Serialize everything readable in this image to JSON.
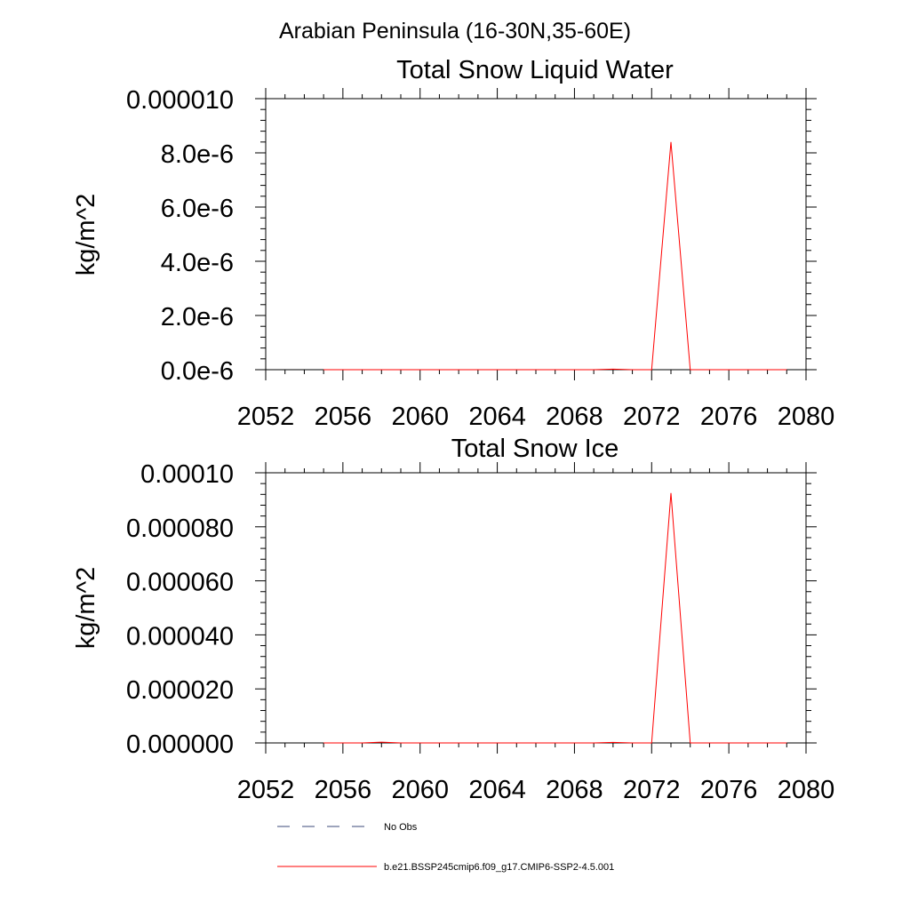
{
  "figure": {
    "suptitle": "Arabian Peninsula (16-30N,35-60E)",
    "legend": [
      {
        "label": "No Obs",
        "color": "#3b4a7a",
        "dash": "dashed"
      },
      {
        "label": "b.e21.BSSP245cmip6.f09_g17.CMIP6-SSP2-4.5.001",
        "color": "#ff0000",
        "dash": "solid"
      }
    ]
  },
  "chart_data": [
    {
      "type": "line",
      "title": "Total Snow Liquid Water",
      "xlabel": "",
      "ylabel": "kg/m^2",
      "xlim": [
        2052,
        2080
      ],
      "ylim": [
        0,
        1e-05
      ],
      "xticks": [
        2052,
        2056,
        2060,
        2064,
        2068,
        2072,
        2076,
        2080
      ],
      "xtick_labels": [
        "2052",
        "2056",
        "2060",
        "2064",
        "2068",
        "2072",
        "2076",
        "2080"
      ],
      "yticks": [
        0,
        2e-06,
        4e-06,
        6e-06,
        8e-06,
        1e-05
      ],
      "ytick_labels": [
        "0.0e-6",
        "2.0e-6",
        "4.0e-6",
        "6.0e-6",
        "8.0e-6",
        "0.000010"
      ],
      "series": [
        {
          "name": "b.e21.BSSP245cmip6.f09_g17.CMIP6-SSP2-4.5.001",
          "color": "#ff0000",
          "x": [
            2055,
            2056,
            2057,
            2058,
            2059,
            2060,
            2061,
            2062,
            2063,
            2064,
            2065,
            2066,
            2067,
            2068,
            2069,
            2070,
            2071,
            2072,
            2073,
            2074,
            2075,
            2076,
            2077,
            2078,
            2079
          ],
          "values": [
            0,
            0,
            0,
            0,
            0,
            0,
            0,
            0,
            0,
            0,
            0,
            0,
            0,
            0,
            0,
            2e-08,
            0,
            0,
            8.4e-06,
            0,
            0,
            0,
            0,
            0,
            0
          ]
        }
      ]
    },
    {
      "type": "line",
      "title": "Total Snow Ice",
      "xlabel": "",
      "ylabel": "kg/m^2",
      "xlim": [
        2052,
        2080
      ],
      "ylim": [
        0,
        0.0001
      ],
      "xticks": [
        2052,
        2056,
        2060,
        2064,
        2068,
        2072,
        2076,
        2080
      ],
      "xtick_labels": [
        "2052",
        "2056",
        "2060",
        "2064",
        "2068",
        "2072",
        "2076",
        "2080"
      ],
      "yticks": [
        0,
        2e-05,
        4e-05,
        6e-05,
        8e-05,
        0.0001
      ],
      "ytick_labels": [
        "0.000000",
        "0.000020",
        "0.000040",
        "0.000060",
        "0.000080",
        "0.00010"
      ],
      "series": [
        {
          "name": "b.e21.BSSP245cmip6.f09_g17.CMIP6-SSP2-4.5.001",
          "color": "#ff0000",
          "x": [
            2055,
            2056,
            2057,
            2058,
            2059,
            2060,
            2061,
            2062,
            2063,
            2064,
            2065,
            2066,
            2067,
            2068,
            2069,
            2070,
            2071,
            2072,
            2073,
            2074,
            2075,
            2076,
            2077,
            2078,
            2079
          ],
          "values": [
            0,
            0,
            0,
            3e-07,
            0,
            0,
            0,
            0,
            0,
            0,
            0,
            0,
            0,
            0,
            0,
            2e-07,
            0,
            0,
            9.25e-05,
            0,
            0,
            0,
            0,
            0,
            0
          ]
        }
      ]
    }
  ]
}
